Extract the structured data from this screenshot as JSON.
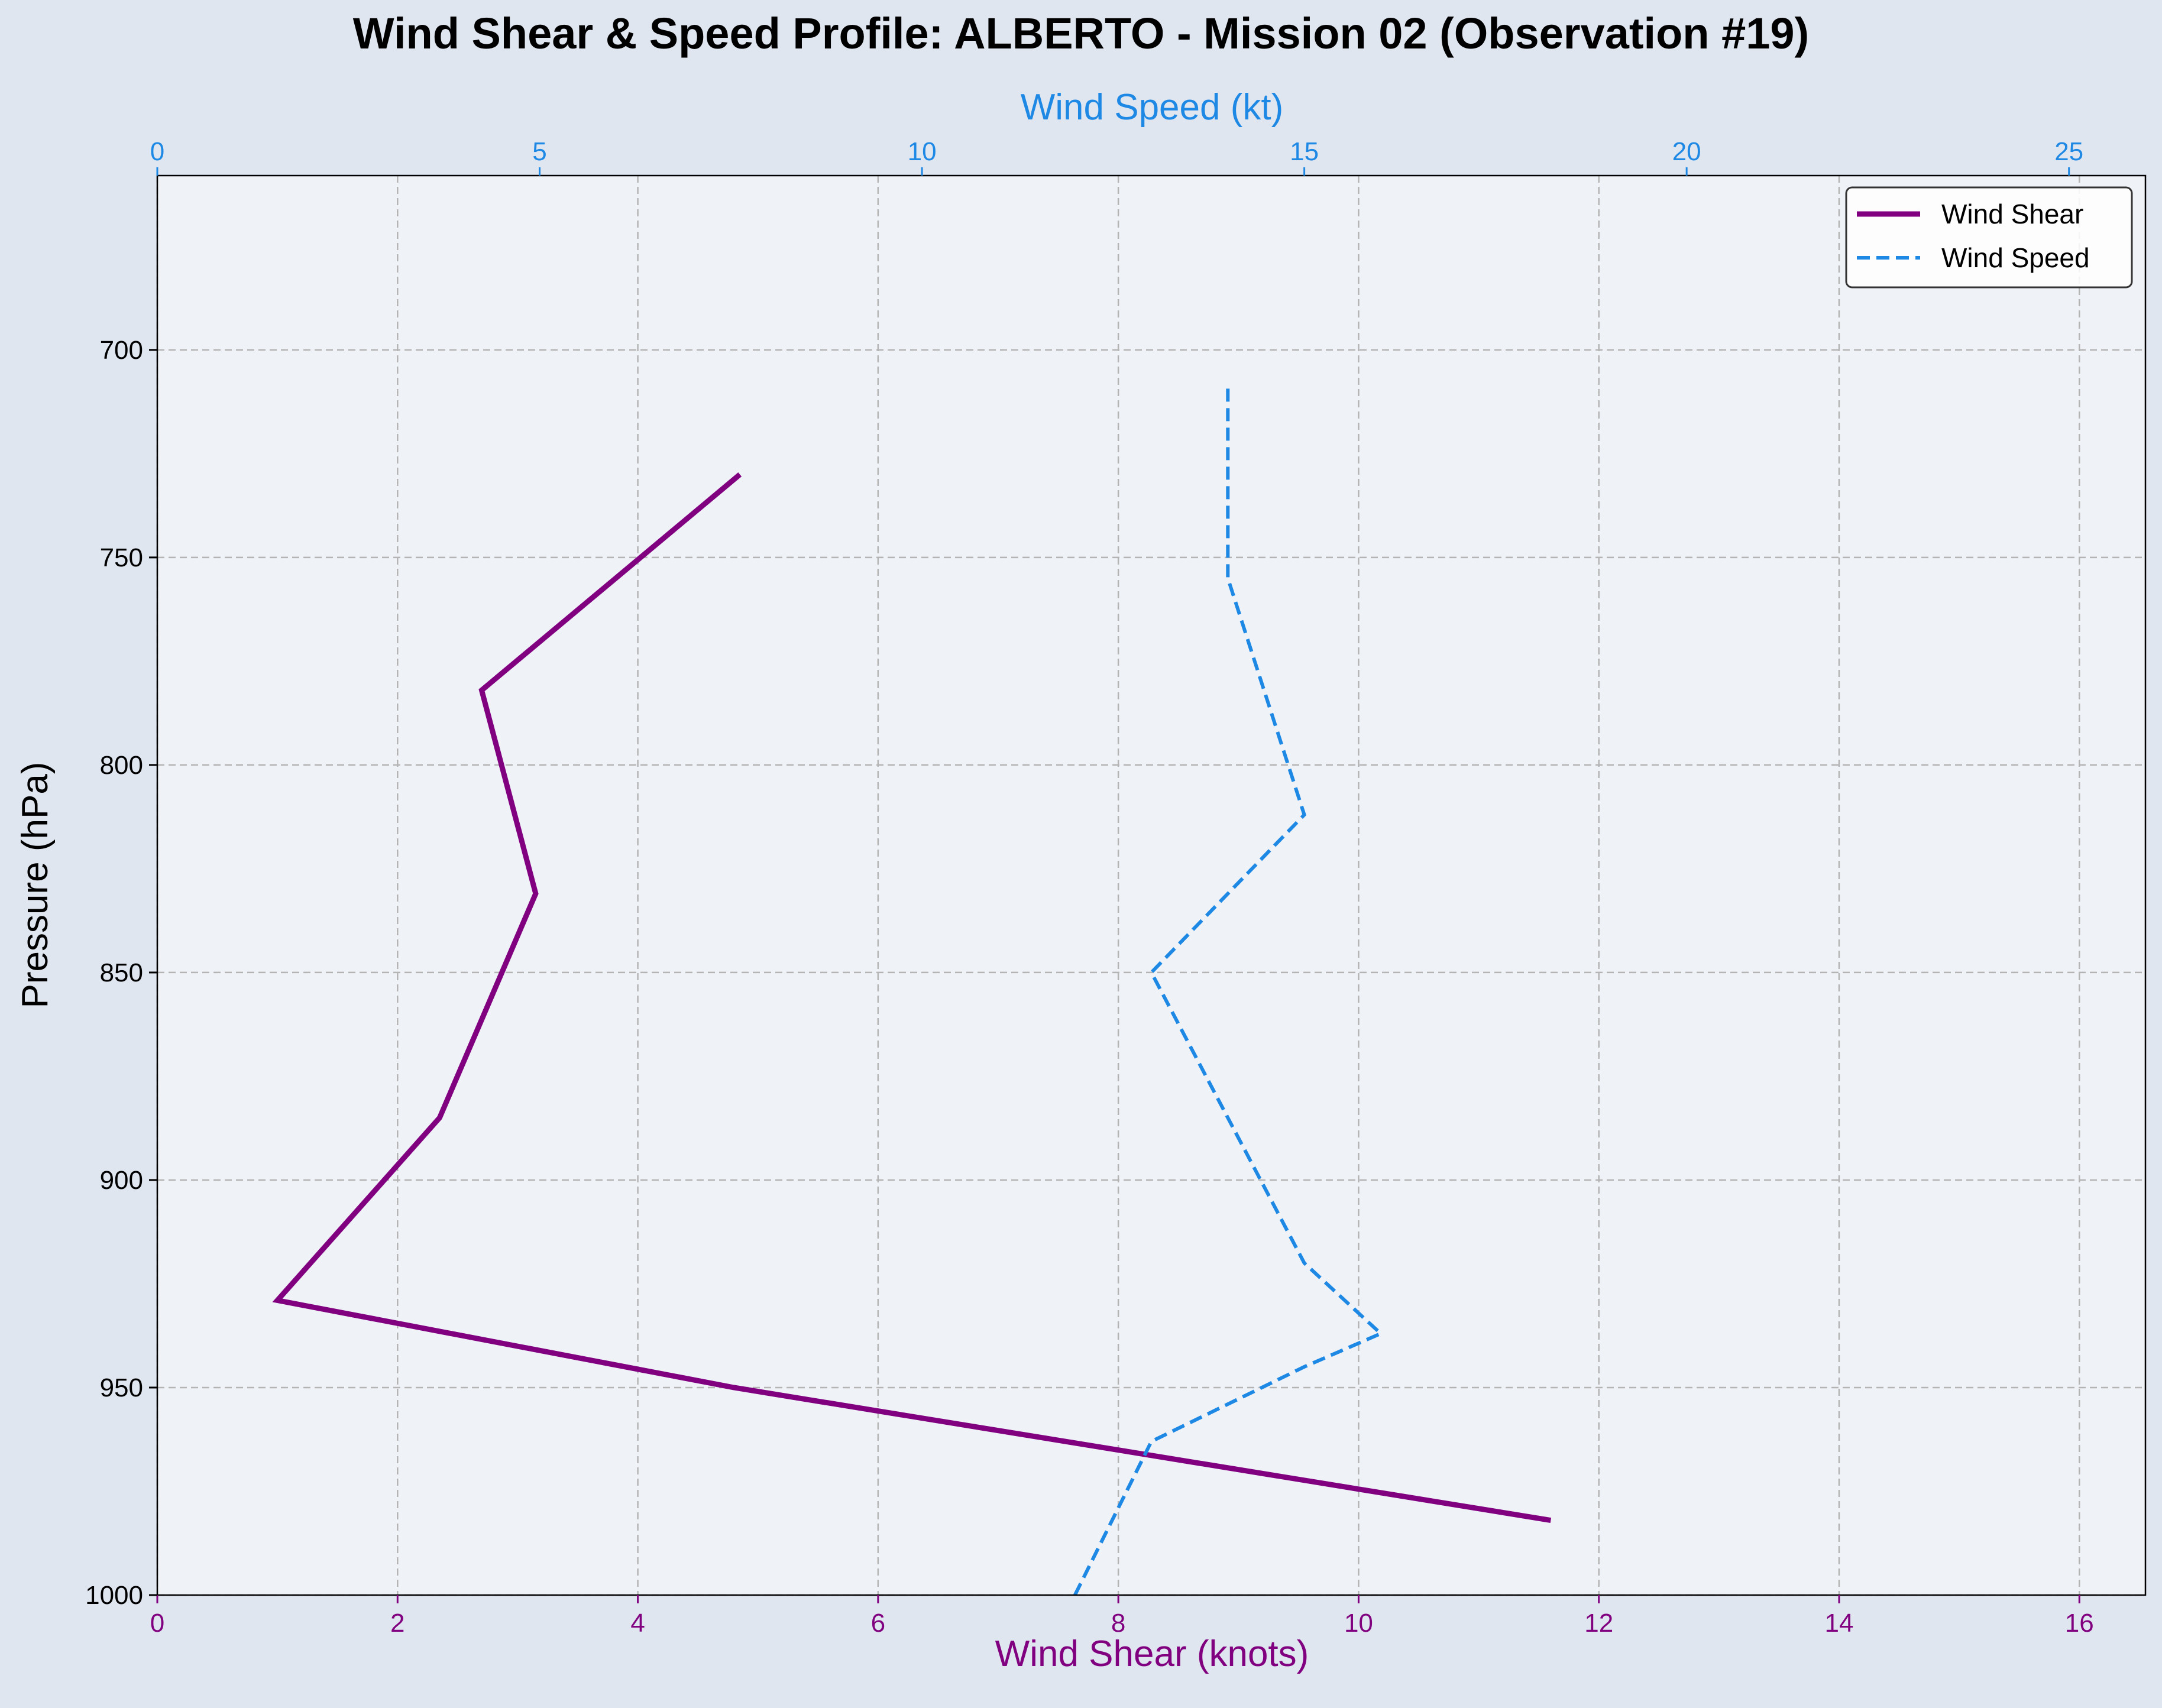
{
  "chart_data": {
    "type": "line",
    "title": "Wind Shear & Speed Profile: ALBERTO - Mission 02 (Observation #19)",
    "xlabel_bottom": "Wind Shear (knots)",
    "xlabel_top": "Wind Speed (kt)",
    "ylabel": "Pressure (hPa)",
    "y_inverted": true,
    "ylim": [
      1000,
      658
    ],
    "xlim_bottom": [
      0,
      16.55
    ],
    "xlim_top": [
      0,
      26
    ],
    "y_ticks": [
      "700",
      "750",
      "800",
      "850",
      "900",
      "950",
      "1000"
    ],
    "x_ticks_bottom": [
      "0",
      "2",
      "4",
      "6",
      "8",
      "10",
      "12",
      "14",
      "16"
    ],
    "x_ticks_top": [
      "0",
      "5",
      "10",
      "15",
      "20",
      "25"
    ],
    "grid": true,
    "legend_position": "top-right",
    "colors": {
      "figure_bg": "#e0e6f0",
      "plot_bg": "#eff2f7",
      "grid": "#b4b4b4",
      "wind_shear": "#800080",
      "wind_speed": "#1e88e5",
      "text": "#000000"
    },
    "series": [
      {
        "name": "Wind Shear",
        "axis": "bottom",
        "style": "solid",
        "points": [
          {
            "x": 11.6,
            "y": 982
          },
          {
            "x": 4.8,
            "y": 950
          },
          {
            "x": 1.0,
            "y": 929
          },
          {
            "x": 2.35,
            "y": 885
          },
          {
            "x": 3.15,
            "y": 831
          },
          {
            "x": 2.7,
            "y": 782
          },
          {
            "x": 4.85,
            "y": 730
          }
        ]
      },
      {
        "name": "Wind Speed",
        "axis": "top",
        "style": "dashed",
        "points": [
          {
            "x": 12.0,
            "y": 1000
          },
          {
            "x": 13.0,
            "y": 963
          },
          {
            "x": 15.0,
            "y": 945
          },
          {
            "x": 16.0,
            "y": 937
          },
          {
            "x": 15.0,
            "y": 920
          },
          {
            "x": 13.0,
            "y": 850
          },
          {
            "x": 15.0,
            "y": 812
          },
          {
            "x": 14.0,
            "y": 755
          },
          {
            "x": 14.0,
            "y": 708
          }
        ]
      }
    ]
  }
}
